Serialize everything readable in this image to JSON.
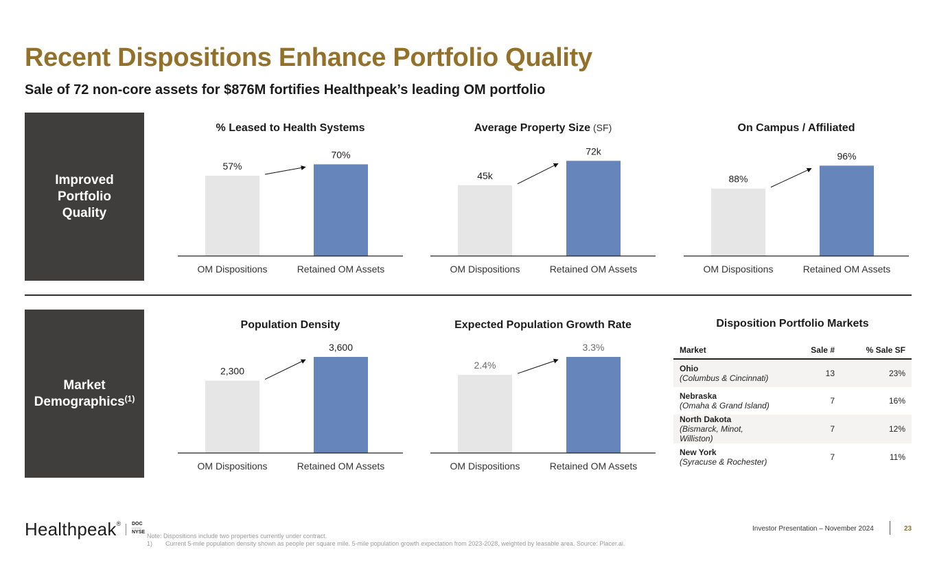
{
  "header": {
    "title": "Recent Dispositions Enhance Portfolio Quality",
    "subtitle": "Sale of 72 non-core assets for $876M fortifies Healthpeak’s leading OM portfolio"
  },
  "sections": [
    {
      "label_lines": [
        "Improved",
        "Portfolio",
        "Quality"
      ],
      "superscript": ""
    },
    {
      "label_lines": [
        "Market",
        "Demographics"
      ],
      "superscript": "(1)"
    }
  ],
  "colors": {
    "accent_gold": "#93712a",
    "section_bg": "#403e3c",
    "bar_dispositions": "#e6e6e7",
    "bar_retained": "#6685bb"
  },
  "chart_data": [
    {
      "type": "bar",
      "title": "% Leased to Health Systems",
      "title_suffix": "",
      "categories": [
        "OM Dispositions",
        "Retained OM Assets"
      ],
      "values": [
        57,
        70
      ],
      "value_labels": [
        "57%",
        "70%"
      ],
      "unit": "%",
      "ylim": [
        0,
        75
      ],
      "arrow": true,
      "grid": false
    },
    {
      "type": "bar",
      "title": "Average Property Size",
      "title_suffix": "(SF)",
      "categories": [
        "OM Dispositions",
        "Retained OM Assets"
      ],
      "values": [
        45000,
        72000
      ],
      "value_labels": [
        "45k",
        "72k"
      ],
      "unit": "SF",
      "ylim": [
        0,
        73000
      ],
      "arrow": true,
      "grid": false
    },
    {
      "type": "bar",
      "title": "On Campus / Affiliated",
      "title_suffix": "",
      "categories": [
        "OM Dispositions",
        "Retained OM Assets"
      ],
      "values": [
        88,
        96
      ],
      "value_labels": [
        "88%",
        "96%"
      ],
      "unit": "%",
      "ylim": [
        75,
        98
      ],
      "arrow": true,
      "grid": false
    },
    {
      "type": "bar",
      "title": "Population Density",
      "title_suffix": "",
      "categories": [
        "OM Dispositions",
        "Retained OM Assets"
      ],
      "values": [
        2300,
        3600
      ],
      "value_labels": [
        "2,300",
        "3,600"
      ],
      "unit": "people per sq mi",
      "ylim": [
        0,
        3600
      ],
      "arrow": true,
      "grid": false
    },
    {
      "type": "bar",
      "title": "Expected Population Growth Rate",
      "title_suffix": "",
      "categories": [
        "OM Dispositions",
        "Retained OM Assets"
      ],
      "values": [
        2.4,
        3.3
      ],
      "value_labels": [
        "2.4%",
        "3.3%"
      ],
      "unit": "%",
      "ylim": [
        0,
        3.3
      ],
      "arrow": true,
      "grid": false,
      "label_style": "grey"
    }
  ],
  "markets_table": {
    "title": "Disposition Portfolio Markets",
    "columns": [
      "Market",
      "Sale #",
      "% Sale SF"
    ],
    "rows": [
      {
        "market": "Ohio",
        "detail": "(Columbus & Cincinnati)",
        "sales": "13",
        "pct_sf": "23%"
      },
      {
        "market": "Nebraska",
        "detail": "(Omaha & Grand Island)",
        "sales": "7",
        "pct_sf": "16%"
      },
      {
        "market": "North Dakota",
        "detail": "(Bismarck, Minot, Williston)",
        "sales": "7",
        "pct_sf": "12%"
      },
      {
        "market": "New York",
        "detail": "(Syracuse & Rochester)",
        "sales": "7",
        "pct_sf": "11%"
      }
    ]
  },
  "footer": {
    "logo_text": "Healthpeak",
    "logo_mark": "®",
    "ticker_top": "DOC",
    "ticker_mid": "LISTED",
    "ticker_bottom": "NYSE",
    "note": "Note: Dispositions include two properties currently under contract.",
    "footnote_num": "1)",
    "footnote": "Current 5-mile population density shown as people per square mile. 5-mile population growth expectation from 2023-2028, weighted by leasable area. Source: Placer.ai.",
    "presentation": "Investor Presentation – November 2024",
    "page_number": "23"
  }
}
